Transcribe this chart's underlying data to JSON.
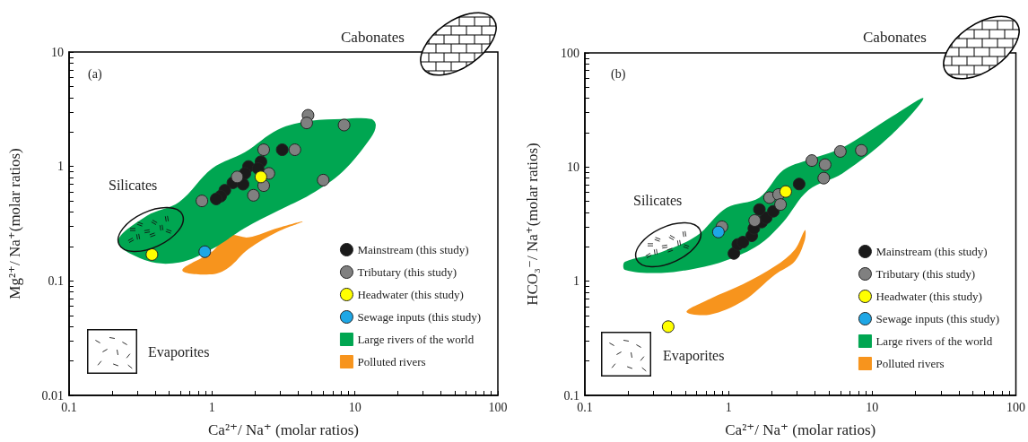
{
  "chart_data": [
    {
      "type": "scatter",
      "xlabel": "Ca²⁺/ Na⁺ (molar ratios)",
      "ylabel": "Mg²⁺/ Na⁺(molar ratios)",
      "log": "xy",
      "xlim": [
        0.1,
        100
      ],
      "ylim": [
        0.01,
        10
      ],
      "xticks": [
        0.1,
        {
          "value": 0.2,
          "label": null
        },
        {
          "value": 0.3,
          "label": null
        },
        {
          "value": 0.4,
          "label": null
        },
        {
          "value": 0.5,
          "label": null
        },
        {
          "value": 0.6,
          "label": null
        },
        {
          "value": 0.7,
          "label": null
        },
        {
          "value": 0.8,
          "label": null
        },
        {
          "value": 0.9,
          "label": null
        },
        1,
        {
          "value": 2,
          "label": null
        },
        {
          "value": 3,
          "label": null
        },
        {
          "value": 4,
          "label": null
        },
        {
          "value": 5,
          "label": null
        },
        {
          "value": 6,
          "label": null
        },
        {
          "value": 7,
          "label": null
        },
        {
          "value": 8,
          "label": null
        },
        {
          "value": 9,
          "label": null
        },
        10,
        {
          "value": 20,
          "label": null
        },
        {
          "value": 30,
          "label": null
        },
        {
          "value": 40,
          "label": null
        },
        {
          "value": 50,
          "label": null
        },
        {
          "value": 60,
          "label": null
        },
        {
          "value": 70,
          "label": null
        },
        {
          "value": 80,
          "label": null
        },
        {
          "value": 90,
          "label": null
        },
        100
      ],
      "yticks": [
        0.01,
        {
          "value": 0.02,
          "label": null
        },
        {
          "value": 0.03,
          "label": null
        },
        {
          "value": 0.04,
          "label": null
        },
        {
          "value": 0.05,
          "label": null
        },
        {
          "value": 0.06,
          "label": null
        },
        {
          "value": 0.07,
          "label": null
        },
        {
          "value": 0.08,
          "label": null
        },
        {
          "value": 0.09,
          "label": null
        },
        0.1,
        {
          "value": 0.2,
          "label": null
        },
        {
          "value": 0.3,
          "label": null
        },
        {
          "value": 0.4,
          "label": null
        },
        {
          "value": 0.5,
          "label": null
        },
        {
          "value": 0.6,
          "label": null
        },
        {
          "value": 0.7,
          "label": null
        },
        {
          "value": 0.8,
          "label": null
        },
        {
          "value": 0.9,
          "label": null
        },
        1,
        {
          "value": 2,
          "label": null
        },
        {
          "value": 3,
          "label": null
        },
        {
          "value": 4,
          "label": null
        },
        {
          "value": 5,
          "label": null
        },
        {
          "value": 6,
          "label": null
        },
        {
          "value": 7,
          "label": null
        },
        {
          "value": 8,
          "label": null
        },
        {
          "value": 9,
          "label": null
        },
        10
      ],
      "legend": "bottom right",
      "annotations": [
        "(a)",
        "Silicates",
        "Cabonates",
        "Evaporites"
      ],
      "series": [
        {
          "name": "Large rivers of the world",
          "type": "area",
          "color": "#00a651",
          "x": [
            0.22,
            0.35,
            0.59,
            1.0,
            1.7,
            2.9,
            4.9,
            8.2,
            13,
            14,
            13,
            8.2,
            4.9,
            2.9,
            1.7,
            1.0,
            0.59,
            0.35
          ],
          "values": [
            0.22,
            0.37,
            0.49,
            0.96,
            1.33,
            2.1,
            2.5,
            2.6,
            2.6,
            2.3,
            1.8,
            0.9,
            0.57,
            0.41,
            0.29,
            0.19,
            0.145,
            0.15
          ]
        },
        {
          "name": "Polluted rivers",
          "type": "area",
          "color": "#f7941d",
          "x": [
            0.62,
            1.0,
            1.3,
            1.8,
            2.9,
            4.3,
            2.9,
            1.8,
            1.3,
            1.0
          ],
          "values": [
            0.124,
            0.18,
            0.25,
            0.24,
            0.29,
            0.33,
            0.27,
            0.19,
            0.13,
            0.114
          ]
        },
        {
          "name": "Mainstream (this study)",
          "marker": "circle",
          "color": "#1a1a1a",
          "x": [
            3.1,
            2.2,
            1.8,
            1.7,
            1.4,
            1.65,
            1.23,
            1.15,
            1.07,
            2.1
          ],
          "values": [
            1.4,
            1.1,
            1.0,
            0.87,
            0.72,
            0.7,
            0.62,
            0.55,
            0.52,
            0.96
          ]
        },
        {
          "name": "Tributary (this study)",
          "marker": "circle",
          "color": "#808080",
          "x": [
            0.85,
            4.7,
            4.6,
            8.4,
            3.8,
            2.3,
            1.5,
            2.5,
            2.3,
            1.95,
            6.0
          ],
          "values": [
            0.5,
            2.8,
            2.4,
            2.3,
            1.4,
            1.4,
            0.81,
            0.87,
            0.68,
            0.56,
            0.76
          ]
        },
        {
          "name": "Headwater (this study)",
          "marker": "circle",
          "color": "#ffff00",
          "x": [
            2.2,
            0.38
          ],
          "values": [
            0.81,
            0.17
          ]
        },
        {
          "name": "Sewage inputs (this study)",
          "marker": "circle",
          "color": "#1ea7e6",
          "x": [
            0.89
          ],
          "values": [
            0.18
          ]
        }
      ]
    },
    {
      "type": "scatter",
      "xlabel": "Ca²⁺/ Na⁺ (molar ratios)",
      "ylabel": "HCO₃⁻/ Na⁺(molar ratios)",
      "log": "xy",
      "xlim": [
        0.1,
        100
      ],
      "ylim": [
        0.1,
        100
      ],
      "xticks": [
        0.1,
        {
          "value": 0.2,
          "label": null
        },
        {
          "value": 0.3,
          "label": null
        },
        {
          "value": 0.4,
          "label": null
        },
        {
          "value": 0.5,
          "label": null
        },
        {
          "value": 0.6,
          "label": null
        },
        {
          "value": 0.7,
          "label": null
        },
        {
          "value": 0.8,
          "label": null
        },
        {
          "value": 0.9,
          "label": null
        },
        1,
        {
          "value": 2,
          "label": null
        },
        {
          "value": 3,
          "label": null
        },
        {
          "value": 4,
          "label": null
        },
        {
          "value": 5,
          "label": null
        },
        {
          "value": 6,
          "label": null
        },
        {
          "value": 7,
          "label": null
        },
        {
          "value": 8,
          "label": null
        },
        {
          "value": 9,
          "label": null
        },
        10,
        {
          "value": 20,
          "label": null
        },
        {
          "value": 30,
          "label": null
        },
        {
          "value": 40,
          "label": null
        },
        {
          "value": 50,
          "label": null
        },
        {
          "value": 60,
          "label": null
        },
        {
          "value": 70,
          "label": null
        },
        {
          "value": 80,
          "label": null
        },
        {
          "value": 90,
          "label": null
        },
        100
      ],
      "yticks": [
        0.1,
        {
          "value": 0.2,
          "label": null
        },
        {
          "value": 0.3,
          "label": null
        },
        {
          "value": 0.4,
          "label": null
        },
        {
          "value": 0.5,
          "label": null
        },
        {
          "value": 0.6,
          "label": null
        },
        {
          "value": 0.7,
          "label": null
        },
        {
          "value": 0.8,
          "label": null
        },
        {
          "value": 0.9,
          "label": null
        },
        1,
        {
          "value": 2,
          "label": null
        },
        {
          "value": 3,
          "label": null
        },
        {
          "value": 4,
          "label": null
        },
        {
          "value": 5,
          "label": null
        },
        {
          "value": 6,
          "label": null
        },
        {
          "value": 7,
          "label": null
        },
        {
          "value": 8,
          "label": null
        },
        {
          "value": 9,
          "label": null
        },
        10,
        {
          "value": 20,
          "label": null
        },
        {
          "value": 30,
          "label": null
        },
        {
          "value": 40,
          "label": null
        },
        {
          "value": 50,
          "label": null
        },
        {
          "value": 60,
          "label": null
        },
        {
          "value": 70,
          "label": null
        },
        {
          "value": 80,
          "label": null
        },
        {
          "value": 90,
          "label": null
        },
        100
      ],
      "legend": "bottom right",
      "annotations": [
        "(b)",
        "Silicates",
        "Cabonates",
        "Evaporites"
      ],
      "series": [
        {
          "name": "Large rivers of the world",
          "type": "area",
          "color": "#00a651",
          "x": [
            0.19,
            0.34,
            0.6,
            0.97,
            1.64,
            2.4,
            3.6,
            6.2,
            13.7,
            22.7,
            13.7,
            6.2,
            3.6,
            2.4,
            1.64,
            0.97,
            0.6,
            0.34,
            0.19
          ],
          "values": [
            1.48,
            1.8,
            2.5,
            4.4,
            5.4,
            9.4,
            11.6,
            14.8,
            27.7,
            40,
            19.3,
            8.8,
            6.3,
            3.3,
            2.1,
            1.53,
            1.3,
            1.18,
            1.26
          ]
        },
        {
          "name": "Polluted rivers",
          "type": "area",
          "color": "#f7941d",
          "x": [
            0.51,
            0.74,
            1.26,
            2.1,
            2.9,
            3.4,
            3.4,
            2.9,
            2.1,
            1.26,
            0.74
          ],
          "values": [
            0.54,
            0.7,
            0.94,
            1.35,
            1.9,
            2.8,
            2.3,
            1.5,
            1.14,
            0.67,
            0.51
          ]
        },
        {
          "name": "Mainstream (this study)",
          "marker": "circle",
          "color": "#1a1a1a",
          "x": [
            3.1,
            1.09,
            1.16,
            1.26,
            1.45,
            1.5,
            1.7,
            1.83,
            1.64,
            2.05
          ],
          "values": [
            7.1,
            1.75,
            2.1,
            2.2,
            2.5,
            2.9,
            3.3,
            3.6,
            4.25,
            4.1
          ]
        },
        {
          "name": "Tributary (this study)",
          "marker": "circle",
          "color": "#808080",
          "x": [
            0.9,
            1.52,
            1.93,
            2.23,
            2.3,
            3.8,
            4.7,
            4.6,
            6.0,
            8.4
          ],
          "values": [
            3.0,
            3.4,
            5.4,
            5.75,
            4.7,
            11.4,
            10.5,
            8.0,
            13.7,
            14
          ]
        },
        {
          "name": "Headwater (this study)",
          "marker": "circle",
          "color": "#ffff00",
          "x": [
            2.5,
            0.38
          ],
          "values": [
            6.1,
            0.4
          ]
        },
        {
          "name": "Sewage inputs (this study)",
          "marker": "circle",
          "color": "#1ea7e6",
          "x": [
            0.85
          ],
          "values": [
            2.7
          ]
        }
      ]
    }
  ]
}
